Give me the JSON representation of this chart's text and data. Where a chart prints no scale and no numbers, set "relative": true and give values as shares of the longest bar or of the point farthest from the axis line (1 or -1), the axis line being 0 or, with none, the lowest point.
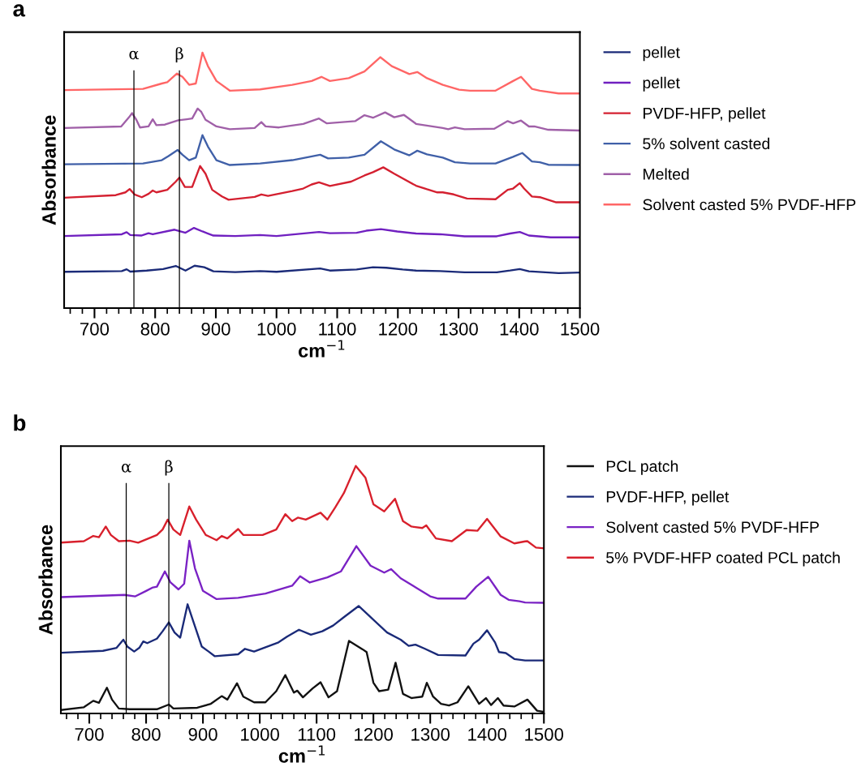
{
  "chart_data": [
    {
      "type": "line",
      "title": "a",
      "xlabel": "cm$^{−1}$",
      "ylabel": "Absorbance",
      "relative": true,
      "legend": "right",
      "xlim": [
        650,
        1500
      ],
      "xticks": [
        {
          "value": 660,
          "label": null
        },
        {
          "value": 680,
          "label": null
        },
        700,
        {
          "value": 720,
          "label": null
        },
        {
          "value": 740,
          "label": null
        },
        {
          "value": 760,
          "label": null
        },
        {
          "value": 780,
          "label": null
        },
        800,
        {
          "value": 820,
          "label": null
        },
        {
          "value": 840,
          "label": null
        },
        {
          "value": 860,
          "label": null
        },
        {
          "value": 880,
          "label": null
        },
        900,
        {
          "value": 920,
          "label": null
        },
        {
          "value": 940,
          "label": null
        },
        {
          "value": 960,
          "label": null
        },
        {
          "value": 980,
          "label": null
        },
        1000,
        {
          "value": 1020,
          "label": null
        },
        {
          "value": 1040,
          "label": null
        },
        {
          "value": 1060,
          "label": null
        },
        {
          "value": 1080,
          "label": null
        },
        1100,
        {
          "value": 1120,
          "label": null
        },
        {
          "value": 1140,
          "label": null
        },
        {
          "value": 1160,
          "label": null
        },
        {
          "value": 1180,
          "label": null
        },
        1200,
        {
          "value": 1220,
          "label": null
        },
        {
          "value": 1240,
          "label": null
        },
        {
          "value": 1260,
          "label": null
        },
        {
          "value": 1280,
          "label": null
        },
        1300,
        {
          "value": 1320,
          "label": null
        },
        {
          "value": 1340,
          "label": null
        },
        {
          "value": 1360,
          "label": null
        },
        {
          "value": 1380,
          "label": null
        },
        1400,
        {
          "value": 1420,
          "label": null
        },
        {
          "value": 1440,
          "label": null
        },
        {
          "value": 1460,
          "label": null
        },
        {
          "value": 1480,
          "label": null
        },
        1500
      ],
      "ref_lines": [
        {
          "axis": "x",
          "value": 765,
          "label": "α",
          "color": "#000000"
        },
        {
          "axis": "x",
          "value": 840,
          "label": "β",
          "color": "#000000"
        }
      ],
      "series": [
        {
          "name": "pellet",
          "color": "#1a2a78",
          "x": [
            650,
            745,
            753,
            759,
            786,
            813,
            834,
            850,
            865,
            881,
            896,
            932,
            973,
            1000,
            1072,
            1088,
            1132,
            1159,
            1181,
            1208,
            1230,
            1270,
            1310,
            1363,
            1385,
            1401,
            1416,
            1465,
            1499
          ],
          "values": [
            0.142,
            0.145,
            0.152,
            0.143,
            0.147,
            0.153,
            0.165,
            0.147,
            0.166,
            0.16,
            0.144,
            0.141,
            0.145,
            0.142,
            0.155,
            0.147,
            0.151,
            0.16,
            0.158,
            0.151,
            0.147,
            0.145,
            0.14,
            0.14,
            0.147,
            0.153,
            0.144,
            0.137,
            0.139
          ]
        },
        {
          "name": "pellet",
          "color": "#7020c0",
          "x": [
            650,
            745,
            753,
            759,
            777,
            789,
            796,
            832,
            850,
            864,
            878,
            896,
            932,
            973,
            1000,
            1070,
            1088,
            1132,
            1148,
            1172,
            1199,
            1230,
            1270,
            1310,
            1363,
            1385,
            1401,
            1416,
            1452,
            1499
          ],
          "values": [
            0.282,
            0.289,
            0.297,
            0.286,
            0.284,
            0.293,
            0.289,
            0.307,
            0.295,
            0.314,
            0.3,
            0.284,
            0.282,
            0.286,
            0.282,
            0.298,
            0.293,
            0.295,
            0.303,
            0.309,
            0.3,
            0.292,
            0.289,
            0.281,
            0.281,
            0.292,
            0.298,
            0.284,
            0.277,
            0.277
          ]
        },
        {
          "name": "PVDF-HFP, pellet",
          "color": "#d42030",
          "x": [
            650,
            735,
            751,
            758,
            766,
            778,
            789,
            796,
            802,
            820,
            834,
            840,
            849,
            861,
            874,
            883,
            894,
            910,
            921,
            964,
            975,
            986,
            1026,
            1044,
            1058,
            1070,
            1088,
            1123,
            1145,
            1159,
            1176,
            1194,
            1230,
            1248,
            1265,
            1274,
            1292,
            1314,
            1361,
            1381,
            1390,
            1401,
            1408,
            1421,
            1434,
            1461,
            1499
          ],
          "values": [
            0.432,
            0.442,
            0.453,
            0.466,
            0.445,
            0.434,
            0.447,
            0.46,
            0.453,
            0.463,
            0.495,
            0.511,
            0.474,
            0.474,
            0.556,
            0.526,
            0.463,
            0.437,
            0.424,
            0.435,
            0.445,
            0.439,
            0.458,
            0.468,
            0.484,
            0.492,
            0.478,
            0.495,
            0.519,
            0.532,
            0.551,
            0.526,
            0.479,
            0.465,
            0.453,
            0.453,
            0.445,
            0.429,
            0.426,
            0.463,
            0.468,
            0.489,
            0.468,
            0.437,
            0.434,
            0.414,
            0.414
          ]
        },
        {
          "name": "5% solvent casted",
          "color": "#4060a8",
          "x": [
            650,
            780,
            811,
            822,
            837,
            845,
            856,
            867,
            878,
            887,
            901,
            923,
            973,
            1026,
            1072,
            1085,
            1119,
            1145,
            1172,
            1194,
            1219,
            1232,
            1248,
            1274,
            1294,
            1319,
            1361,
            1390,
            1405,
            1421,
            1434,
            1448,
            1499
          ],
          "values": [
            0.563,
            0.566,
            0.579,
            0.595,
            0.619,
            0.6,
            0.579,
            0.589,
            0.677,
            0.632,
            0.579,
            0.56,
            0.566,
            0.579,
            0.6,
            0.586,
            0.589,
            0.6,
            0.653,
            0.621,
            0.598,
            0.616,
            0.602,
            0.589,
            0.571,
            0.566,
            0.566,
            0.592,
            0.607,
            0.574,
            0.571,
            0.561,
            0.56
          ]
        },
        {
          "name": "Melted",
          "color": "#a060a8",
          "x": [
            650,
            744,
            757,
            762,
            769,
            775,
            789,
            796,
            802,
            816,
            838,
            852,
            861,
            870,
            876,
            883,
            901,
            923,
            964,
            975,
            982,
            1004,
            1044,
            1070,
            1083,
            1130,
            1145,
            1159,
            1179,
            1194,
            1210,
            1230,
            1274,
            1283,
            1294,
            1310,
            1359,
            1381,
            1390,
            1403,
            1416,
            1425,
            1448,
            1499
          ],
          "values": [
            0.705,
            0.711,
            0.747,
            0.763,
            0.737,
            0.707,
            0.711,
            0.739,
            0.716,
            0.718,
            0.735,
            0.739,
            0.742,
            0.781,
            0.768,
            0.737,
            0.711,
            0.7,
            0.705,
            0.728,
            0.711,
            0.707,
            0.721,
            0.742,
            0.723,
            0.732,
            0.755,
            0.745,
            0.766,
            0.747,
            0.756,
            0.721,
            0.705,
            0.7,
            0.707,
            0.7,
            0.702,
            0.732,
            0.723,
            0.734,
            0.711,
            0.711,
            0.698,
            0.695
          ]
        },
        {
          "name": "Solvent casted 5% PVDF-HFP",
          "color": "#ff6666",
          "x": [
            650,
            780,
            811,
            820,
            836,
            845,
            856,
            867,
            878,
            887,
            901,
            923,
            973,
            1026,
            1058,
            1074,
            1088,
            1119,
            1145,
            1171,
            1190,
            1219,
            1232,
            1248,
            1274,
            1301,
            1319,
            1361,
            1390,
            1403,
            1421,
            1434,
            1465,
            1499
          ],
          "values": [
            0.853,
            0.858,
            0.879,
            0.884,
            0.918,
            0.905,
            0.874,
            0.879,
            1.0,
            0.947,
            0.889,
            0.851,
            0.856,
            0.874,
            0.889,
            0.905,
            0.889,
            0.9,
            0.926,
            0.982,
            0.947,
            0.916,
            0.924,
            0.9,
            0.874,
            0.855,
            0.851,
            0.851,
            0.889,
            0.905,
            0.858,
            0.851,
            0.84,
            0.84
          ]
        }
      ]
    },
    {
      "type": "line",
      "title": "b",
      "xlabel": "cm$^{−1}$",
      "ylabel": "Absorbance",
      "relative": true,
      "legend": "right",
      "xlim": [
        650,
        1500
      ],
      "xticks": [
        {
          "value": 660,
          "label": null
        },
        {
          "value": 680,
          "label": null
        },
        700,
        {
          "value": 720,
          "label": null
        },
        {
          "value": 740,
          "label": null
        },
        {
          "value": 760,
          "label": null
        },
        {
          "value": 780,
          "label": null
        },
        800,
        {
          "value": 820,
          "label": null
        },
        {
          "value": 840,
          "label": null
        },
        {
          "value": 860,
          "label": null
        },
        {
          "value": 880,
          "label": null
        },
        900,
        {
          "value": 920,
          "label": null
        },
        {
          "value": 940,
          "label": null
        },
        {
          "value": 960,
          "label": null
        },
        {
          "value": 980,
          "label": null
        },
        1000,
        {
          "value": 1020,
          "label": null
        },
        {
          "value": 1040,
          "label": null
        },
        {
          "value": 1060,
          "label": null
        },
        {
          "value": 1080,
          "label": null
        },
        1100,
        {
          "value": 1120,
          "label": null
        },
        {
          "value": 1140,
          "label": null
        },
        {
          "value": 1160,
          "label": null
        },
        {
          "value": 1180,
          "label": null
        },
        1200,
        {
          "value": 1220,
          "label": null
        },
        {
          "value": 1240,
          "label": null
        },
        {
          "value": 1260,
          "label": null
        },
        {
          "value": 1280,
          "label": null
        },
        1300,
        {
          "value": 1320,
          "label": null
        },
        {
          "value": 1340,
          "label": null
        },
        {
          "value": 1360,
          "label": null
        },
        {
          "value": 1380,
          "label": null
        },
        1400,
        {
          "value": 1420,
          "label": null
        },
        {
          "value": 1440,
          "label": null
        },
        {
          "value": 1460,
          "label": null
        },
        {
          "value": 1480,
          "label": null
        },
        1500
      ],
      "ref_lines": [
        {
          "axis": "x",
          "value": 765,
          "label": "α",
          "color": "#000000"
        },
        {
          "axis": "x",
          "value": 840,
          "label": "β",
          "color": "#000000"
        }
      ],
      "series": [
        {
          "name": "PCL patch",
          "color": "#111111",
          "x": [
            650,
            690.5,
            707,
            717,
            731,
            740,
            752,
            771,
            819,
            840,
            848,
            890,
            914,
            933,
            943,
            960,
            971,
            990,
            1010,
            1029,
            1045,
            1060,
            1066,
            1076,
            1093,
            1107,
            1121,
            1136,
            1157,
            1181,
            1188,
            1200,
            1210,
            1226,
            1239,
            1252,
            1267,
            1286,
            1294,
            1305,
            1319,
            1333,
            1348,
            1367,
            1386,
            1398,
            1407,
            1419,
            1429,
            1448,
            1471,
            1488,
            1500
          ],
          "values": [
            0.014,
            0.025,
            0.051,
            0.043,
            0.104,
            0.056,
            0.02,
            0.017,
            0.017,
            0.036,
            0.02,
            0.023,
            0.039,
            0.07,
            0.056,
            0.122,
            0.068,
            0.045,
            0.045,
            0.09,
            0.155,
            0.084,
            0.092,
            0.065,
            0.101,
            0.126,
            0.065,
            0.09,
            0.293,
            0.259,
            0.248,
            0.124,
            0.09,
            0.096,
            0.205,
            0.079,
            0.062,
            0.068,
            0.124,
            0.068,
            0.039,
            0.032,
            0.045,
            0.11,
            0.039,
            0.062,
            0.034,
            0.062,
            0.032,
            0.028,
            0.056,
            0.011,
            0.006
          ]
        },
        {
          "name": "PVDF-HFP, pellet",
          "color": "#1a2a78",
          "x": [
            650,
            724,
            748,
            760,
            767,
            779,
            788,
            795,
            802,
            819,
            829,
            840,
            850,
            860,
            873,
            883,
            898,
            910,
            921,
            962,
            974,
            990,
            1033,
            1048,
            1069,
            1090,
            1110,
            1129,
            1148,
            1174,
            1195,
            1224,
            1248,
            1262,
            1274,
            1290,
            1314,
            1362,
            1376,
            1386,
            1400,
            1414,
            1421,
            1433,
            1448,
            1467,
            1500
          ],
          "values": [
            0.245,
            0.253,
            0.265,
            0.298,
            0.27,
            0.25,
            0.265,
            0.291,
            0.284,
            0.302,
            0.332,
            0.368,
            0.327,
            0.306,
            0.441,
            0.372,
            0.27,
            0.25,
            0.231,
            0.239,
            0.261,
            0.25,
            0.287,
            0.31,
            0.338,
            0.318,
            0.332,
            0.355,
            0.389,
            0.434,
            0.389,
            0.327,
            0.298,
            0.273,
            0.278,
            0.262,
            0.236,
            0.234,
            0.282,
            0.298,
            0.336,
            0.287,
            0.248,
            0.244,
            0.22,
            0.214,
            0.214
          ]
        },
        {
          "name": "Solvent casted 5% PVDF-HFP",
          "color": "#7a22c4",
          "x": [
            650,
            762,
            781,
            800,
            812,
            819,
            833,
            843,
            857,
            867,
            876,
            886,
            900,
            924,
            962,
            1010,
            1057,
            1071,
            1088,
            1119,
            1143,
            1170,
            1195,
            1219,
            1231,
            1248,
            1276,
            1300,
            1314,
            1362,
            1381,
            1402,
            1424,
            1438,
            1457,
            1467,
            1500
          ],
          "values": [
            0.47,
            0.479,
            0.473,
            0.495,
            0.509,
            0.512,
            0.574,
            0.529,
            0.501,
            0.524,
            0.698,
            0.586,
            0.495,
            0.462,
            0.467,
            0.484,
            0.516,
            0.554,
            0.529,
            0.55,
            0.574,
            0.676,
            0.597,
            0.569,
            0.583,
            0.546,
            0.507,
            0.473,
            0.464,
            0.464,
            0.512,
            0.552,
            0.479,
            0.459,
            0.453,
            0.448,
            0.447
          ]
        },
        {
          "name": "5% PVDF-HFP coated PCL patch",
          "color": "#d8202c",
          "x": [
            650,
            690.5,
            707,
            717,
            729,
            738,
            752,
            771,
            786,
            819,
            829,
            838,
            848,
            860,
            876,
            888,
            905,
            924,
            933,
            943,
            962,
            971,
            1005,
            1029,
            1045,
            1057,
            1067,
            1081,
            1107,
            1119,
            1133,
            1148,
            1169,
            1186,
            1200,
            1219,
            1238,
            1252,
            1267,
            1286,
            1293,
            1310,
            1338,
            1364,
            1383,
            1400,
            1424,
            1448,
            1467,
            1471,
            1486,
            1500
          ],
          "values": [
            0.69,
            0.696,
            0.717,
            0.712,
            0.755,
            0.721,
            0.696,
            0.698,
            0.69,
            0.721,
            0.743,
            0.783,
            0.743,
            0.721,
            0.836,
            0.783,
            0.721,
            0.7,
            0.717,
            0.707,
            0.745,
            0.721,
            0.721,
            0.743,
            0.805,
            0.777,
            0.791,
            0.783,
            0.811,
            0.783,
            0.833,
            0.89,
            1.0,
            0.952,
            0.845,
            0.816,
            0.867,
            0.777,
            0.755,
            0.749,
            0.76,
            0.707,
            0.696,
            0.741,
            0.738,
            0.786,
            0.715,
            0.687,
            0.695,
            0.696,
            0.67,
            0.667
          ]
        }
      ]
    }
  ]
}
